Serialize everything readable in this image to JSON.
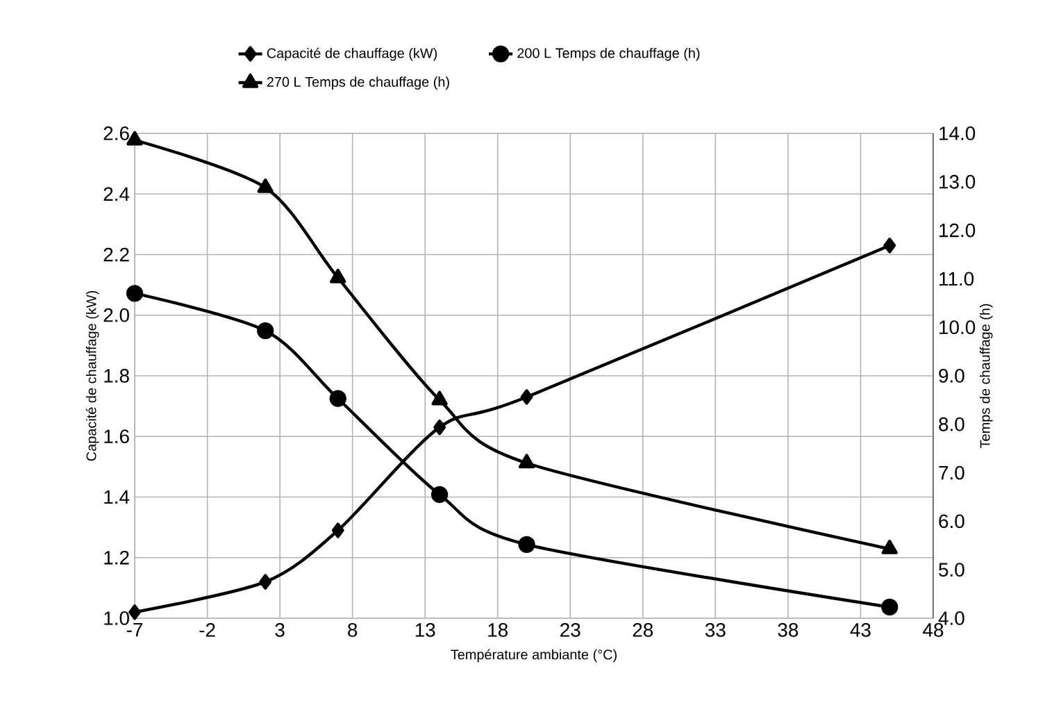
{
  "chart_data": {
    "type": "line",
    "xlabel": "Température ambiante (°C)",
    "ylabel": "Capacité de chauffage (kW)",
    "y2label": "Temps de chauffage (h)",
    "x": [
      -7,
      2,
      7,
      14,
      20,
      45
    ],
    "series": [
      {
        "name": "Capacité de chauffage (kW)",
        "color": "#000000",
        "marker": "diamond",
        "values": [
          1.02,
          1.12,
          1.29,
          1.63,
          1.73,
          2.23
        ]
      },
      {
        "name": "200 L Temps de chauffage (h)",
        "color": "#000000",
        "marker": "circle",
        "axis": "y2",
        "values": [
          10.7,
          9.93,
          8.53,
          6.55,
          5.52,
          4.23
        ]
      },
      {
        "name": "270 L Temps de chauffage (h)",
        "color": "#000000",
        "marker": "triangle",
        "axis": "y2",
        "values": [
          13.86,
          12.88,
          11.02,
          8.5,
          7.2,
          5.43
        ]
      }
    ],
    "xlim": [
      -7,
      48
    ],
    "xticks": [
      -7,
      -2,
      3,
      8,
      13,
      18,
      23,
      28,
      33,
      38,
      43,
      48
    ],
    "ylim": [
      1.0,
      2.6
    ],
    "yticks": [
      {
        "value": 1.0,
        "label": "1.0"
      },
      {
        "value": 1.2,
        "label": "1.2"
      },
      {
        "value": 1.4,
        "label": "1.4"
      },
      {
        "value": 1.6,
        "label": "1.6"
      },
      {
        "value": 1.8,
        "label": "1.8"
      },
      {
        "value": 2.0,
        "label": "2.0"
      },
      {
        "value": 2.2,
        "label": "2.2"
      },
      {
        "value": 2.4,
        "label": "2.4"
      },
      {
        "value": 2.6,
        "label": "2.6"
      }
    ],
    "y2lim": [
      4.0,
      14.0
    ],
    "y2ticks": [
      {
        "value": 4.0,
        "label": "4.0"
      },
      {
        "value": 5.0,
        "label": "5.0"
      },
      {
        "value": 6.0,
        "label": "6.0"
      },
      {
        "value": 7.0,
        "label": "7.0"
      },
      {
        "value": 8.0,
        "label": "8.0"
      },
      {
        "value": 9.0,
        "label": "9.0"
      },
      {
        "value": 10.0,
        "label": "10.0"
      },
      {
        "value": 11.0,
        "label": "11.0"
      },
      {
        "value": 12.0,
        "label": "12.0"
      },
      {
        "value": 13.0,
        "label": "13.0"
      },
      {
        "value": 14.0,
        "label": "14.0"
      }
    ],
    "grid": true,
    "legend": "top",
    "line_style": "solid"
  }
}
